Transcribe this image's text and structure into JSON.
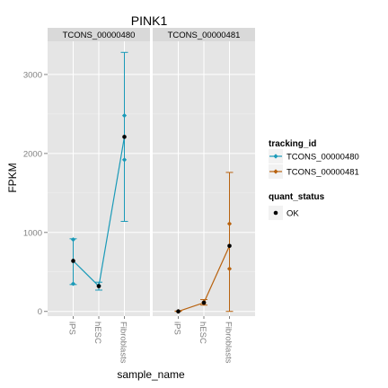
{
  "chart_data": {
    "type": "line",
    "title": "PINK1",
    "xlabel": "sample_name",
    "ylabel": "FPKM",
    "categories": [
      "iPS",
      "hESC",
      "Fibroblasts"
    ],
    "ylim": [
      -60,
      3420
    ],
    "yticks": [
      0,
      1000,
      2000,
      3000
    ],
    "ytick_labels": [
      "0",
      "1000",
      "2000",
      "3000"
    ],
    "grid": true,
    "legend_position": "right",
    "panels": [
      {
        "strip_label": "TCONS_00000480",
        "series_name": "TCONS_00000480",
        "color": "#1a9ab8",
        "values": [
          640,
          320,
          2210
        ],
        "error_low": [
          340,
          270,
          1140
        ],
        "error_high": [
          920,
          370,
          3280
        ],
        "replicates": [
          [
            350,
            910
          ],
          [
            330,
            320
          ],
          [
            1920,
            2480
          ]
        ]
      },
      {
        "strip_label": "TCONS_00000481",
        "series_name": "TCONS_00000481",
        "color": "#b8620f",
        "values": [
          0,
          110,
          830
        ],
        "error_low": [
          0,
          80,
          0
        ],
        "error_high": [
          5,
          150,
          1760
        ],
        "replicates": [
          [
            0,
            0
          ],
          [
            100,
            120
          ],
          [
            540,
            1110
          ]
        ]
      }
    ],
    "legends": [
      {
        "title": "tracking_id",
        "entries": [
          {
            "label": "TCONS_00000480",
            "color": "#1a9ab8"
          },
          {
            "label": "TCONS_00000481",
            "color": "#b8620f"
          }
        ]
      },
      {
        "title": "quant_status",
        "entries": [
          {
            "label": "OK",
            "color": "#000000"
          }
        ]
      }
    ]
  }
}
